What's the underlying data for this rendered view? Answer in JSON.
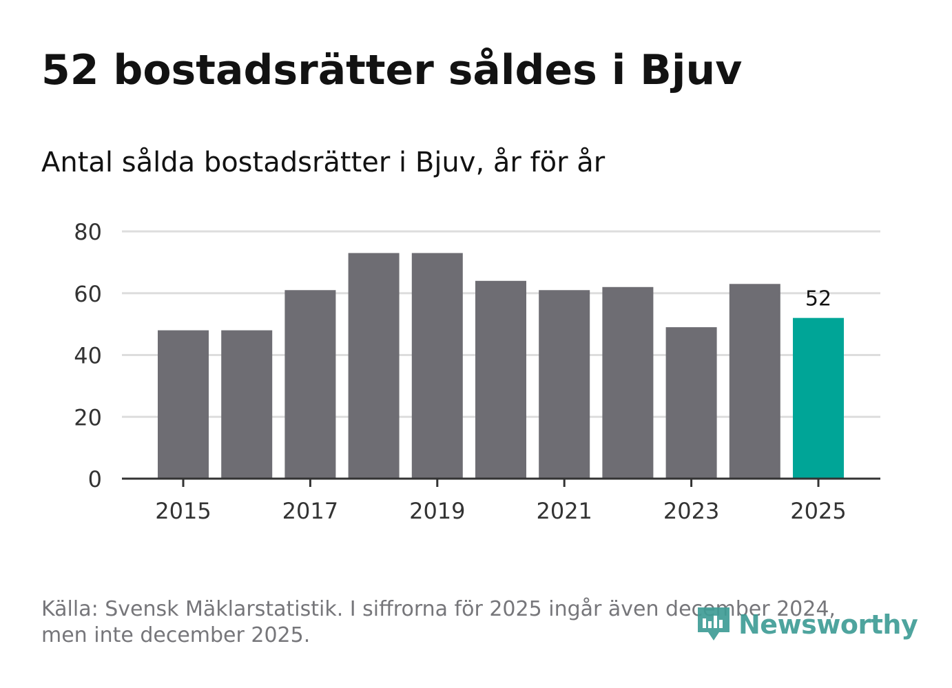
{
  "title": "52 bostadsrätter såldes i Bjuv",
  "subtitle": "Antal sålda bostadsrätter i Bjuv, år för år",
  "footer": {
    "source_line_1": "Källa: Svensk Mäklarstatistik. I siffrorna för 2025 ingår även december 2024,",
    "source_line_2": "men inte december 2025."
  },
  "logo": {
    "text": "Newsworthy",
    "icon": "newsworthy-logo-icon",
    "color": "#3f9d96"
  },
  "colors": {
    "bar": "#6e6d73",
    "highlight": "#00a597",
    "grid": "#dddddd",
    "axis": "#333333"
  },
  "chart_data": {
    "type": "bar",
    "title": "Antal sålda bostadsrätter i Bjuv, år för år",
    "xlabel": "",
    "ylabel": "",
    "categories": [
      "2015",
      "2016",
      "2017",
      "2018",
      "2019",
      "2020",
      "2021",
      "2022",
      "2023",
      "2024",
      "2025"
    ],
    "values": [
      48,
      48,
      61,
      73,
      73,
      64,
      61,
      62,
      49,
      63,
      52
    ],
    "highlight_index": 10,
    "data_labels": [
      {
        "index": 10,
        "text": "52"
      }
    ],
    "x_tick_labels": [
      "2015",
      "2017",
      "2019",
      "2021",
      "2023",
      "2025"
    ],
    "y_ticks": [
      0,
      20,
      40,
      60,
      80
    ],
    "ylim": [
      0,
      80
    ],
    "grid": true,
    "legend": "none"
  }
}
